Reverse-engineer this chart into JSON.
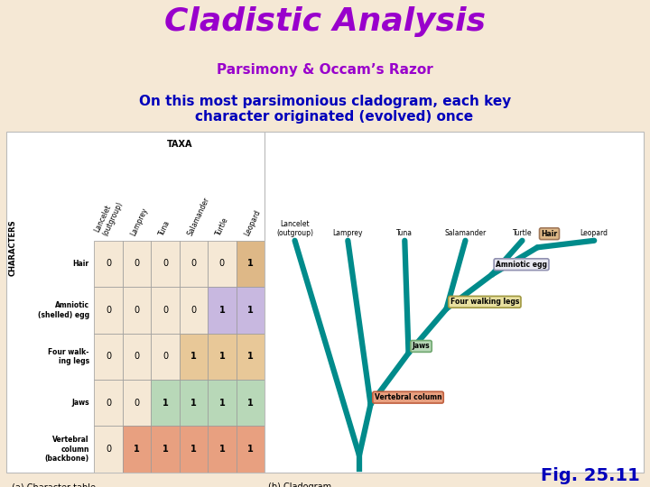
{
  "bg_color": "#f5e8d5",
  "title": "Cladistic Analysis",
  "title_color": "#9900cc",
  "subtitle1": "Parsimony & Occam’s Razor",
  "subtitle1_color": "#9900cc",
  "subtitle2": "On this most parsimonious cladogram, each key\n    character originated (evolved) once",
  "subtitle2_color": "#0000bb",
  "fig_num": "Fig. 25.11",
  "fig_num_color": "#0000bb",
  "table_taxa": [
    "Lancelet\n(outgroup)",
    "Lamprey",
    "Tuna",
    "Salamander",
    "Turtle",
    "Leopard"
  ],
  "table_characters": [
    "Hair",
    "Amniotic\n(shelled) egg",
    "Four walk-\ning legs",
    "Jaws",
    "Vertebral\ncolumn\n(backbone)"
  ],
  "table_data": [
    [
      0,
      0,
      0,
      0,
      0,
      1
    ],
    [
      0,
      0,
      0,
      0,
      1,
      1
    ],
    [
      0,
      0,
      0,
      1,
      1,
      1
    ],
    [
      0,
      0,
      1,
      1,
      1,
      1
    ],
    [
      0,
      1,
      1,
      1,
      1,
      1
    ]
  ],
  "cell_colors": [
    [
      "#f5e8d5",
      "#f5e8d5",
      "#f5e8d5",
      "#f5e8d5",
      "#f5e8d5",
      "#deb887"
    ],
    [
      "#f5e8d5",
      "#f5e8d5",
      "#f5e8d5",
      "#f5e8d5",
      "#c8b8e0",
      "#c8b8e0"
    ],
    [
      "#f5e8d5",
      "#f5e8d5",
      "#f5e8d5",
      "#e8c898",
      "#e8c898",
      "#e8c898"
    ],
    [
      "#f5e8d5",
      "#f5e8d5",
      "#b8d8b8",
      "#b8d8b8",
      "#b8d8b8",
      "#b8d8b8"
    ],
    [
      "#f5e8d5",
      "#e8a080",
      "#e8a080",
      "#e8a080",
      "#e8a080",
      "#e8a080"
    ]
  ],
  "clado_color": "#008b8b",
  "clado_lw": 4.5,
  "taxa_labels": [
    "Lancelet\n(outgroup)",
    "Lamprey",
    "Tuna",
    "Salamander",
    "Turtle",
    "Leopard"
  ],
  "node_boxes": [
    {
      "label": "Hair",
      "fc": "#deb887",
      "ec": "#a0785a"
    },
    {
      "label": "Amniotic egg",
      "fc": "#e8e8f0",
      "ec": "#9090b0"
    },
    {
      "label": "Four walking legs",
      "fc": "#e8e0a0",
      "ec": "#a09840"
    },
    {
      "label": "Jaws",
      "fc": "#b8d8b8",
      "ec": "#70a870"
    },
    {
      "label": "Vertebral column",
      "fc": "#e8a080",
      "ec": "#c06040"
    }
  ],
  "panel_a_label": "(a) Character table",
  "panel_b_label": "(b) Cladogram"
}
